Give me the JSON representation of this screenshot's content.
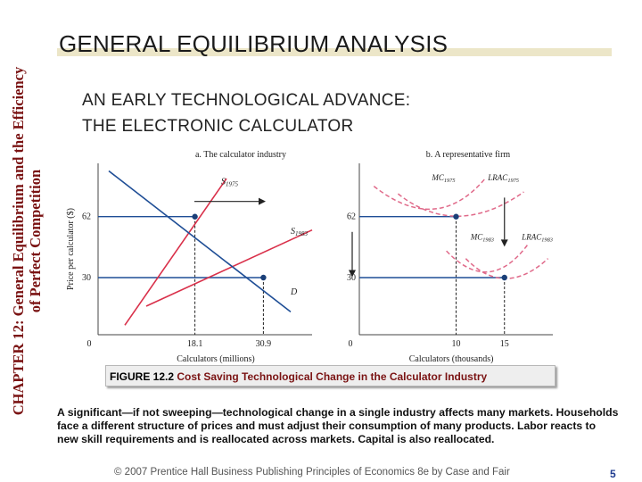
{
  "side_title": {
    "line1": "CHAPTER 12:  General Equilibrium and the Efficiency",
    "line2": "of Perfect Competition"
  },
  "main_title": "GENERAL EQUILIBRIUM ANALYSIS",
  "subtitle": {
    "line1": "AN EARLY TECHNOLOGICAL ADVANCE:",
    "line2": "THE ELECTRONIC CALCULATOR"
  },
  "colors": {
    "accent_red": "#7a1313",
    "supply_red": "#d9304a",
    "demand_blue": "#1f4e96",
    "dashed_pink": "#e06a8a",
    "dot": "#1a3f78"
  },
  "chart_data": [
    {
      "type": "line",
      "title": "a. The calculator industry",
      "xlabel": "Calculators (millions)",
      "ylabel": "Price per calculator ($)",
      "x_ticks": [
        "0",
        "18.1",
        "30.9"
      ],
      "y_ticks": [
        "62",
        "30"
      ],
      "xlim": [
        0,
        40
      ],
      "ylim": [
        0,
        90
      ],
      "series": [
        {
          "name": "S1975",
          "values": [
            [
              5,
              5
            ],
            [
              24,
              82
            ]
          ]
        },
        {
          "name": "S1983",
          "values": [
            [
              9,
              15
            ],
            [
              40,
              55
            ]
          ]
        },
        {
          "name": "D",
          "values": [
            [
              2,
              86
            ],
            [
              36,
              12
            ]
          ]
        }
      ],
      "equilibria": [
        {
          "x": 18.1,
          "y": 62
        },
        {
          "x": 30.9,
          "y": 30
        }
      ],
      "labels": {
        "s1975": "S1975",
        "s1983": "S1983",
        "d": "D"
      }
    },
    {
      "type": "line",
      "title": "b. A representative firm",
      "xlabel": "Calculators (thousands)",
      "x_ticks": [
        "0",
        "10",
        "15"
      ],
      "y_ticks": [
        "62",
        "30"
      ],
      "xlim": [
        0,
        20
      ],
      "ylim": [
        0,
        90
      ],
      "series": [
        {
          "name": "MC1975",
          "shape": "U"
        },
        {
          "name": "LRAC1975",
          "shape": "U",
          "min": [
            10,
            62
          ]
        },
        {
          "name": "MC1983",
          "shape": "U"
        },
        {
          "name": "LRAC1983",
          "shape": "U",
          "min": [
            15,
            30
          ]
        }
      ],
      "equilibria": [
        {
          "x": 10,
          "y": 62
        },
        {
          "x": 15,
          "y": 30
        }
      ],
      "labels": {
        "mc1975": "MC1975",
        "lrac1975": "LRAC1975",
        "mc1983": "MC1983",
        "lrac1983": "LRAC1983"
      }
    }
  ],
  "figure_caption": {
    "number": "FIGURE 12.2",
    "text": "Cost Saving Technological Change in the Calculator Industry"
  },
  "description": "A significant—if not sweeping—technological change in a single industry affects many markets.  Households face a different structure of prices and must adjust their consumption of many products.  Labor reacts to new skill requirements and is reallocated across markets.  Capital is also reallocated.",
  "footer": "© 2007 Prentice Hall Business Publishing   Principles of Economics 8e by Case and Fair",
  "page_number": "5"
}
